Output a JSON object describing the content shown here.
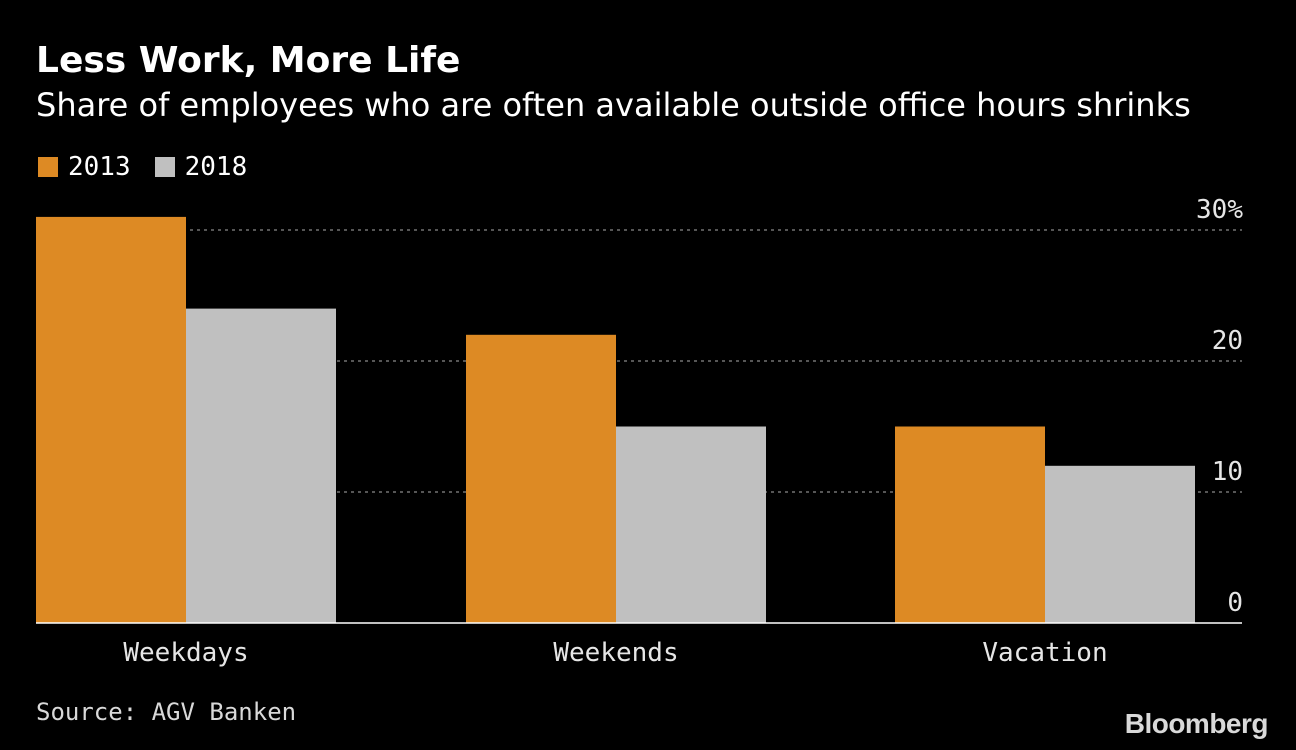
{
  "chart_data": {
    "type": "bar",
    "title": "Less Work, More Life",
    "subtitle": "Share of employees who are often available outside office hours shrinks",
    "categories": [
      "Weekdays",
      "Weekends",
      "Vacation"
    ],
    "series": [
      {
        "name": "2013",
        "color": "#dd8a24",
        "values": [
          31,
          22,
          15
        ]
      },
      {
        "name": "2018",
        "color": "#c0c0c0",
        "values": [
          24,
          15,
          12
        ]
      }
    ],
    "ylim": [
      0,
      30
    ],
    "yticks": [
      0,
      10,
      20,
      30
    ],
    "ytick_labels": [
      "0",
      "10",
      "20",
      "30%"
    ],
    "grid": true,
    "legend_position": "top-left",
    "xlabel": "",
    "ylabel": ""
  },
  "source": "Source: AGV Banken",
  "brand": "Bloomberg"
}
